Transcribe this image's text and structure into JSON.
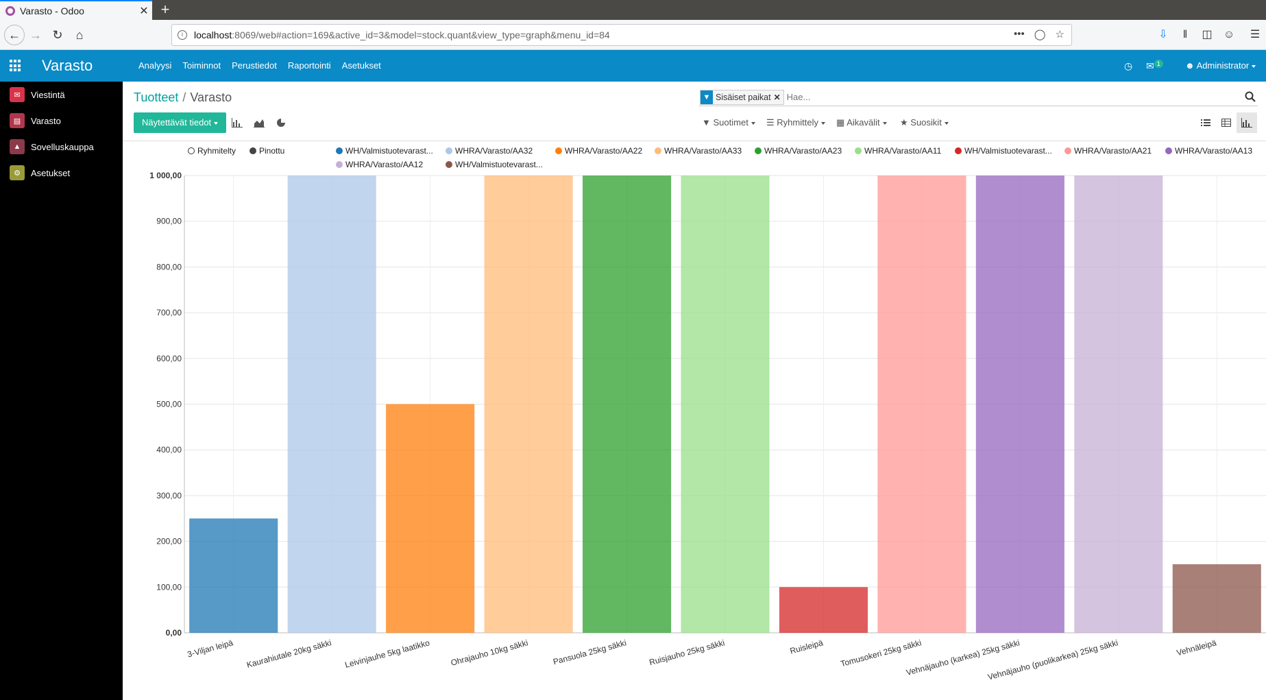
{
  "browser": {
    "tab_title": "Varasto - Odoo",
    "url_host": "localhost",
    "url_rest": ":8069/web#action=169&active_id=3&model=stock.quant&view_type=graph&menu_id=84"
  },
  "header": {
    "brand": "Varasto",
    "menu": [
      "Analyysi",
      "Toiminnot",
      "Perustiedot",
      "Raportointi",
      "Asetukset"
    ],
    "messages_badge": "1",
    "user": "Administrator"
  },
  "sidebar": {
    "items": [
      {
        "label": "Viestintä",
        "color": "#d9334a"
      },
      {
        "label": "Varasto",
        "color": "#b0374b"
      },
      {
        "label": "Sovelluskauppa",
        "color": "#8a3a4a"
      },
      {
        "label": "Asetukset",
        "color": "#9a9a3a"
      }
    ]
  },
  "breadcrumb": {
    "parent": "Tuotteet",
    "current": "Varasto"
  },
  "search": {
    "facet": "Sisäiset paikat",
    "placeholder": "Hae..."
  },
  "toolbar": {
    "measures": "Näytettävät tiedot",
    "filters": "Suotimet",
    "groupby": "Ryhmittely",
    "timeranges": "Aikavälit",
    "favorites": "Suosikit"
  },
  "chart_data": {
    "type": "bar",
    "modes": [
      "Ryhmitelty",
      "Pinottu"
    ],
    "categories": [
      "3-Viljan leipä",
      "Kaurahiutale 20kg säkki",
      "Leivinjauhe 5kg laatikko",
      "Ohrajauho 10kg säkki",
      "Pansuola 25kg säkki",
      "Ruisjauho 25kg säkki",
      "Ruisleipä",
      "Tomusokeri 25kg säkki",
      "Vehnäjauho (karkea) 25kg säkki",
      "Vehnäjauho (puolikarkea) 25kg säkki",
      "Vehnäleipä"
    ],
    "series": [
      {
        "name": "WH/Valmistuotevarast...",
        "color": "#1f77b4",
        "values": [
          250,
          null,
          null,
          null,
          null,
          null,
          null,
          null,
          null,
          null,
          null
        ]
      },
      {
        "name": "WHRA/Varasto/AA32",
        "color": "#aec7e8",
        "values": [
          null,
          1000,
          null,
          null,
          null,
          null,
          null,
          null,
          null,
          null,
          null
        ]
      },
      {
        "name": "WHRA/Varasto/AA22",
        "color": "#ff7f0e",
        "values": [
          null,
          null,
          500,
          null,
          null,
          null,
          null,
          null,
          null,
          null,
          null
        ]
      },
      {
        "name": "WHRA/Varasto/AA33",
        "color": "#ffbb78",
        "values": [
          null,
          null,
          null,
          1000,
          null,
          null,
          null,
          null,
          null,
          null,
          null
        ]
      },
      {
        "name": "WHRA/Varasto/AA23",
        "color": "#2ca02c",
        "values": [
          null,
          null,
          null,
          null,
          1000,
          null,
          null,
          null,
          null,
          null,
          null
        ]
      },
      {
        "name": "WHRA/Varasto/AA11",
        "color": "#98df8a",
        "values": [
          null,
          null,
          null,
          null,
          null,
          1000,
          null,
          null,
          null,
          null,
          null
        ]
      },
      {
        "name": "WH/Valmistuotevarast...",
        "color": "#d62728",
        "values": [
          null,
          null,
          null,
          null,
          null,
          null,
          100,
          null,
          null,
          null,
          null
        ]
      },
      {
        "name": "WHRA/Varasto/AA21",
        "color": "#ff9896",
        "values": [
          null,
          null,
          null,
          null,
          null,
          null,
          null,
          1000,
          null,
          null,
          null
        ]
      },
      {
        "name": "WHRA/Varasto/AA13",
        "color": "#9467bd",
        "values": [
          null,
          null,
          null,
          null,
          null,
          null,
          null,
          null,
          1000,
          null,
          null
        ]
      },
      {
        "name": "WHRA/Varasto/AA12",
        "color": "#c5b0d5",
        "values": [
          null,
          null,
          null,
          null,
          null,
          null,
          null,
          null,
          null,
          1000,
          null
        ]
      },
      {
        "name": "WH/Valmistuotevarast...",
        "color": "#8c564b",
        "values": [
          null,
          null,
          null,
          null,
          null,
          null,
          null,
          null,
          null,
          null,
          150
        ]
      }
    ],
    "ylim": [
      0,
      1000
    ],
    "yticks": [
      "0,00",
      "100,00",
      "200,00",
      "300,00",
      "400,00",
      "500,00",
      "600,00",
      "700,00",
      "800,00",
      "900,00",
      "1 000,00"
    ]
  }
}
